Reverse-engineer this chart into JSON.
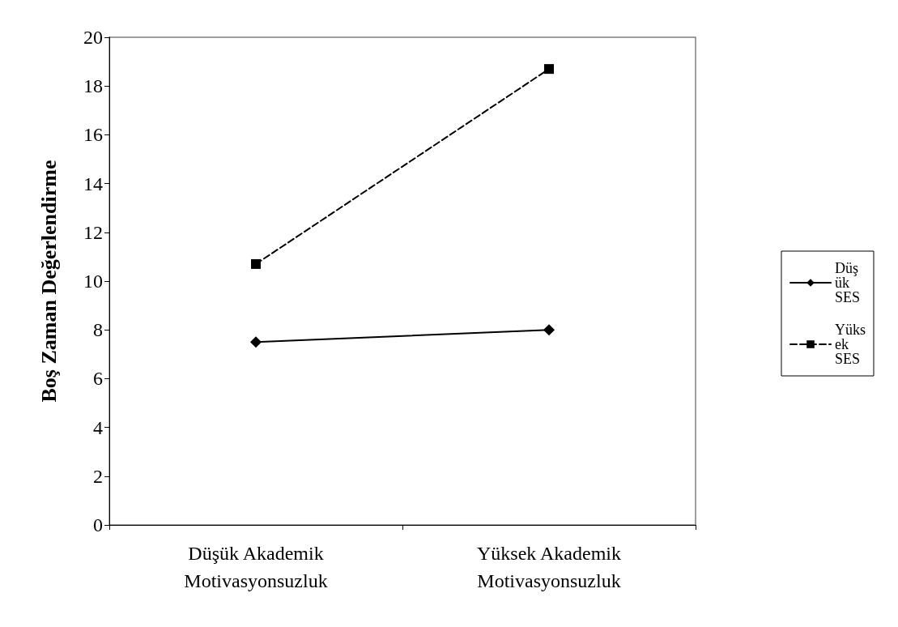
{
  "chart_data": {
    "type": "line",
    "ylabel": "Boş Zaman Değerlendirme",
    "categories": [
      "Düşük Akademik\nMotivasyonsuzluk",
      "Yüksek Akademik\nMotivasyonsuzluk"
    ],
    "series": [
      {
        "name": "Düşük SES",
        "color": "#000000",
        "values": [
          7.5,
          8.0
        ],
        "marker": "diamond",
        "line_style": "solid"
      },
      {
        "name": "Yüksek SES",
        "color": "#000000",
        "values": [
          10.7,
          18.7
        ],
        "marker": "square",
        "line_style": "dashed"
      }
    ],
    "ylim": [
      0,
      20
    ],
    "yticks": [
      0,
      2,
      4,
      6,
      8,
      10,
      12,
      14,
      16,
      18,
      20
    ],
    "grid": false,
    "legend": "right"
  }
}
